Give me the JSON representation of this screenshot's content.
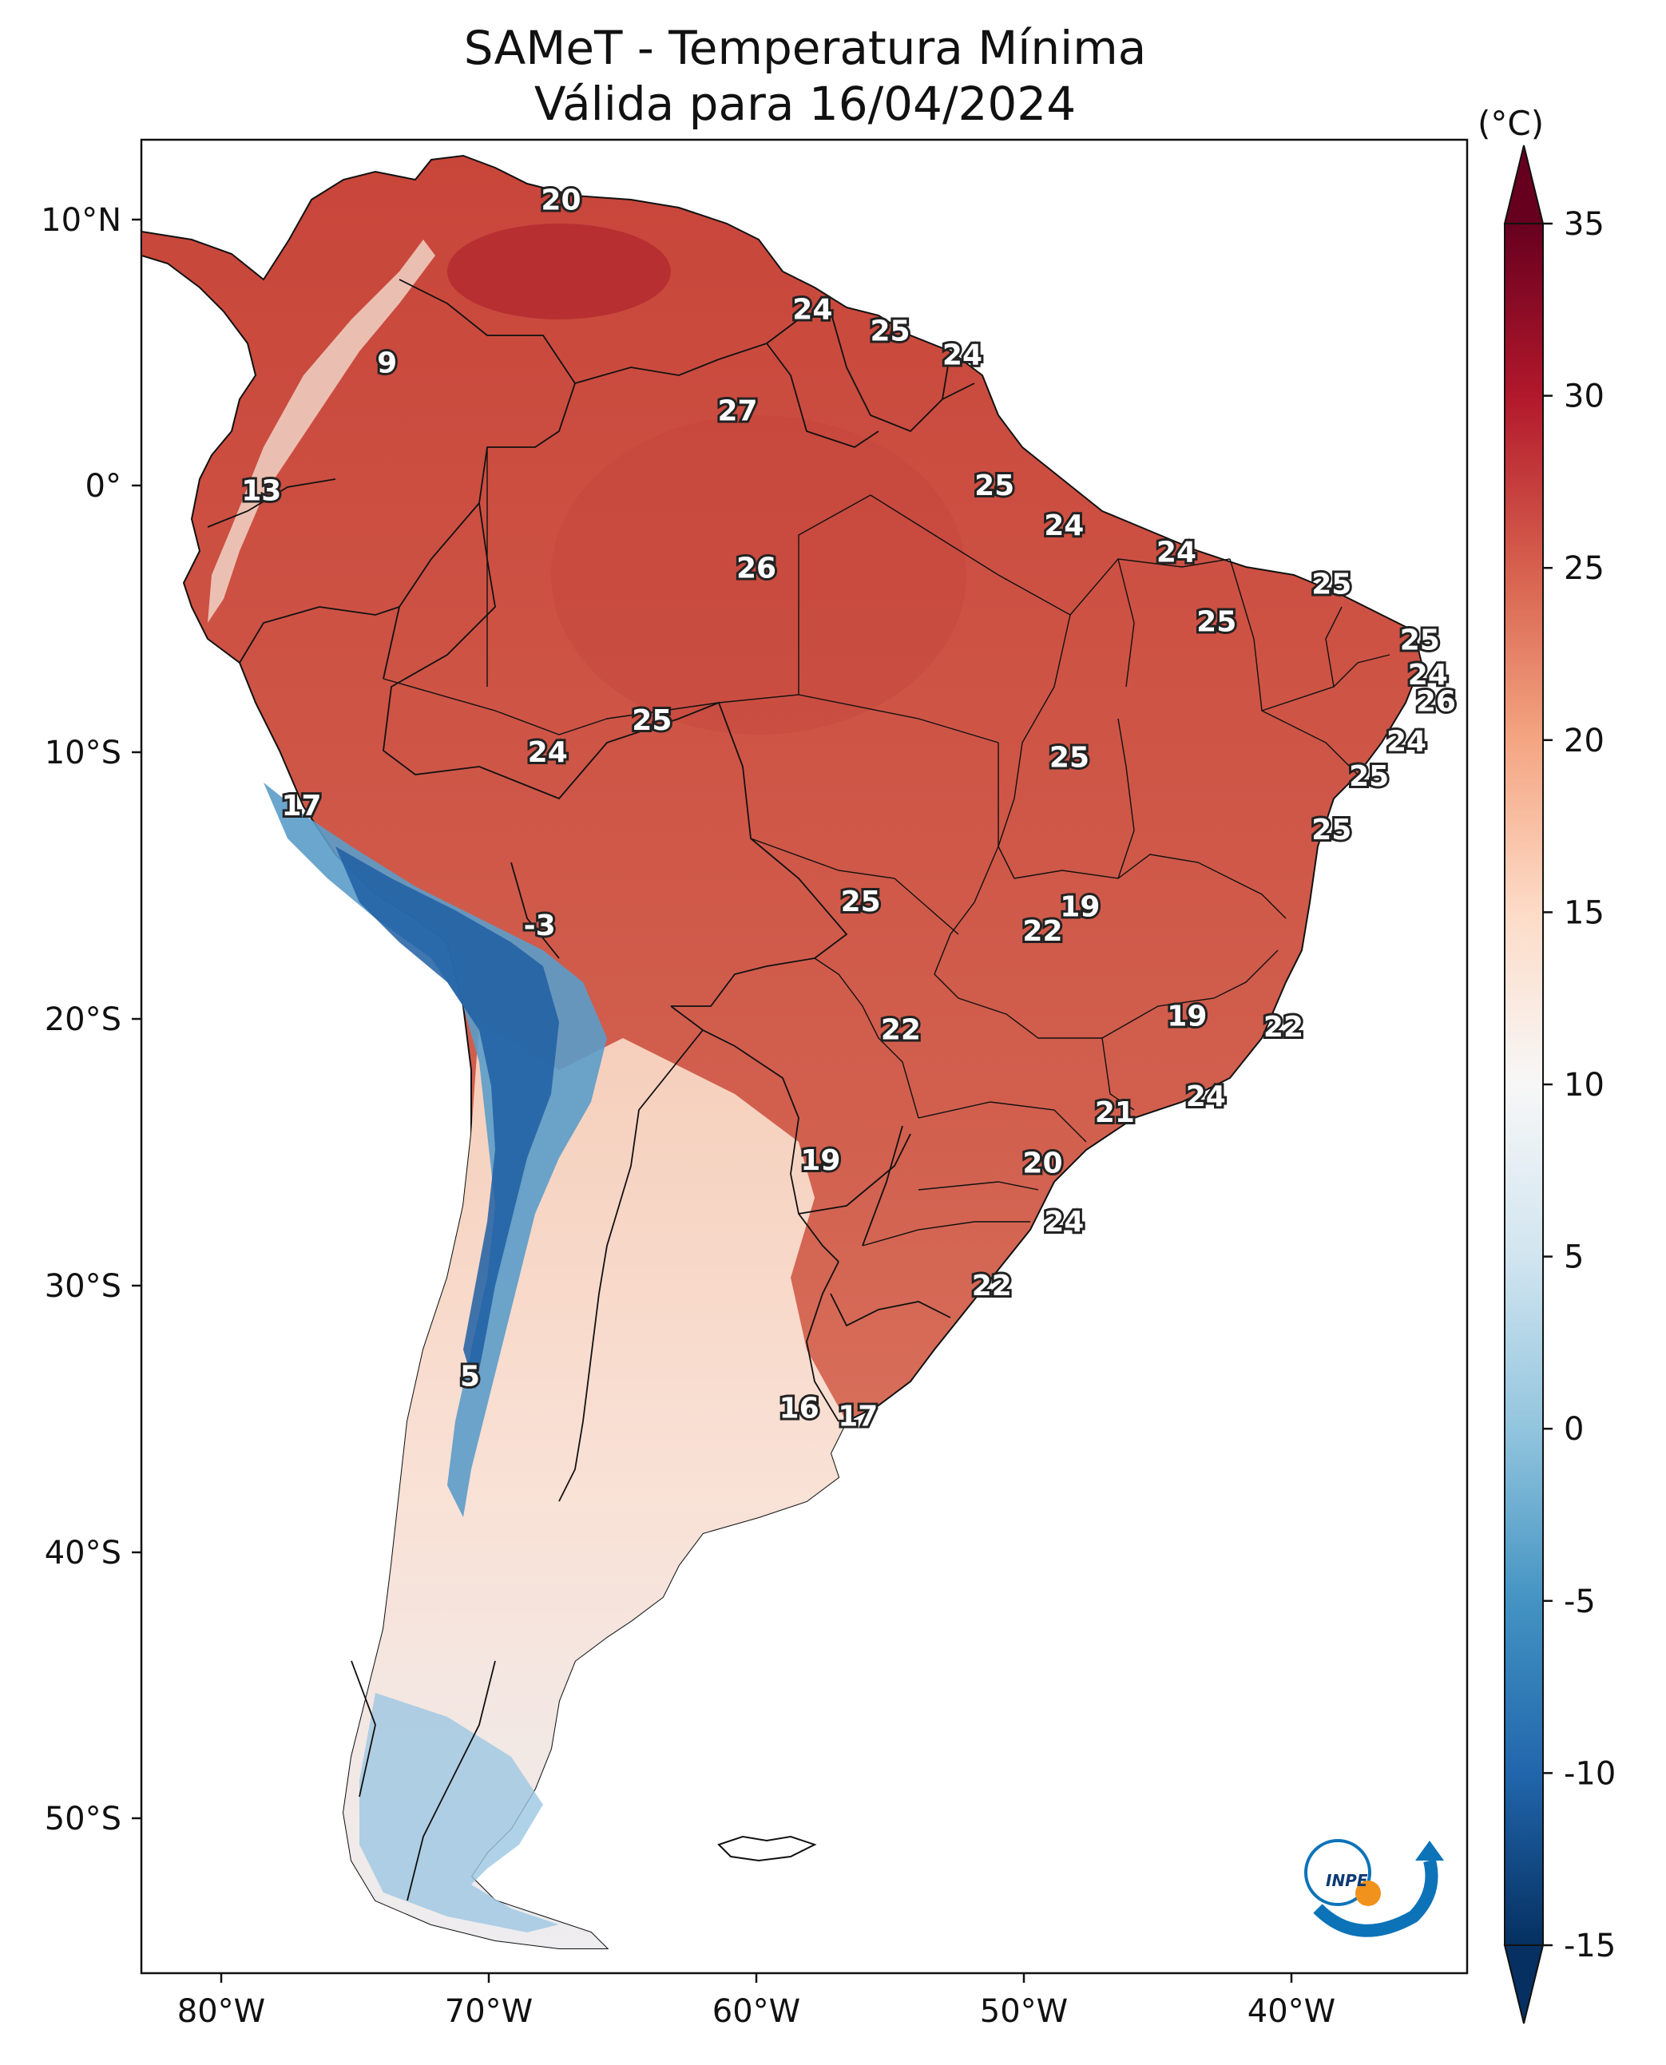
{
  "title": "SAMeT - Temperatura Mínima",
  "subtitle": "Válida para 16/04/2024",
  "colorbar": {
    "unit": "(°C)",
    "min": -15,
    "max": 35,
    "ticks": [
      "35",
      "30",
      "25",
      "20",
      "15",
      "10",
      "5",
      "0",
      "-5",
      "-10",
      "-15"
    ],
    "colors": [
      "#67001f",
      "#b2182b",
      "#d6604d",
      "#f4a582",
      "#fddbc7",
      "#f7f7f7",
      "#d1e5f0",
      "#92c5de",
      "#4393c3",
      "#2166ac",
      "#053061"
    ]
  },
  "axes": {
    "lon_labels": [
      "80°W",
      "70°W",
      "60°W",
      "50°W",
      "40°W"
    ],
    "lat_labels": [
      "10°N",
      "0°",
      "10°S",
      "20°S",
      "30°S",
      "40°S",
      "50°S"
    ]
  },
  "temperature_labels": [
    {
      "lon": -67.3,
      "lat": 10.7,
      "value": "20"
    },
    {
      "lon": -73.8,
      "lat": 4.6,
      "value": "9"
    },
    {
      "lon": -78.5,
      "lat": -0.2,
      "value": "13"
    },
    {
      "lon": -57.9,
      "lat": 6.6,
      "value": "24"
    },
    {
      "lon": -55.0,
      "lat": 5.8,
      "value": "25"
    },
    {
      "lon": -52.3,
      "lat": 4.9,
      "value": "24"
    },
    {
      "lon": -60.7,
      "lat": 2.8,
      "value": "27"
    },
    {
      "lon": -51.1,
      "lat": 0.0,
      "value": "25"
    },
    {
      "lon": -48.5,
      "lat": -1.5,
      "value": "24"
    },
    {
      "lon": -60.0,
      "lat": -3.1,
      "value": "26"
    },
    {
      "lon": -44.3,
      "lat": -2.5,
      "value": "24"
    },
    {
      "lon": -38.5,
      "lat": -3.7,
      "value": "25"
    },
    {
      "lon": -42.8,
      "lat": -5.1,
      "value": "25"
    },
    {
      "lon": -35.2,
      "lat": -5.8,
      "value": "25"
    },
    {
      "lon": -34.9,
      "lat": -7.1,
      "value": "24"
    },
    {
      "lon": -34.6,
      "lat": -8.1,
      "value": "26"
    },
    {
      "lon": -35.7,
      "lat": -9.6,
      "value": "24"
    },
    {
      "lon": -37.1,
      "lat": -10.9,
      "value": "25"
    },
    {
      "lon": -38.5,
      "lat": -12.9,
      "value": "25"
    },
    {
      "lon": -63.9,
      "lat": -8.8,
      "value": "25"
    },
    {
      "lon": -67.8,
      "lat": -10.0,
      "value": "24"
    },
    {
      "lon": -48.3,
      "lat": -10.2,
      "value": "25"
    },
    {
      "lon": -77.0,
      "lat": -12.0,
      "value": "17"
    },
    {
      "lon": -47.9,
      "lat": -15.8,
      "value": "19"
    },
    {
      "lon": -49.3,
      "lat": -16.7,
      "value": "22"
    },
    {
      "lon": -56.1,
      "lat": -15.6,
      "value": "25"
    },
    {
      "lon": -68.1,
      "lat": -16.5,
      "value": "-3"
    },
    {
      "lon": -43.9,
      "lat": -19.9,
      "value": "19"
    },
    {
      "lon": -40.3,
      "lat": -20.3,
      "value": "22"
    },
    {
      "lon": -54.6,
      "lat": -20.4,
      "value": "22"
    },
    {
      "lon": -43.2,
      "lat": -22.9,
      "value": "24"
    },
    {
      "lon": -46.6,
      "lat": -23.5,
      "value": "21"
    },
    {
      "lon": -49.3,
      "lat": -25.4,
      "value": "20"
    },
    {
      "lon": -57.6,
      "lat": -25.3,
      "value": "19"
    },
    {
      "lon": -48.5,
      "lat": -27.6,
      "value": "24"
    },
    {
      "lon": -51.2,
      "lat": -30.0,
      "value": "22"
    },
    {
      "lon": -70.7,
      "lat": -33.4,
      "value": "5"
    },
    {
      "lon": -58.4,
      "lat": -34.6,
      "value": "16"
    },
    {
      "lon": -56.2,
      "lat": -34.9,
      "value": "17"
    }
  ]
}
